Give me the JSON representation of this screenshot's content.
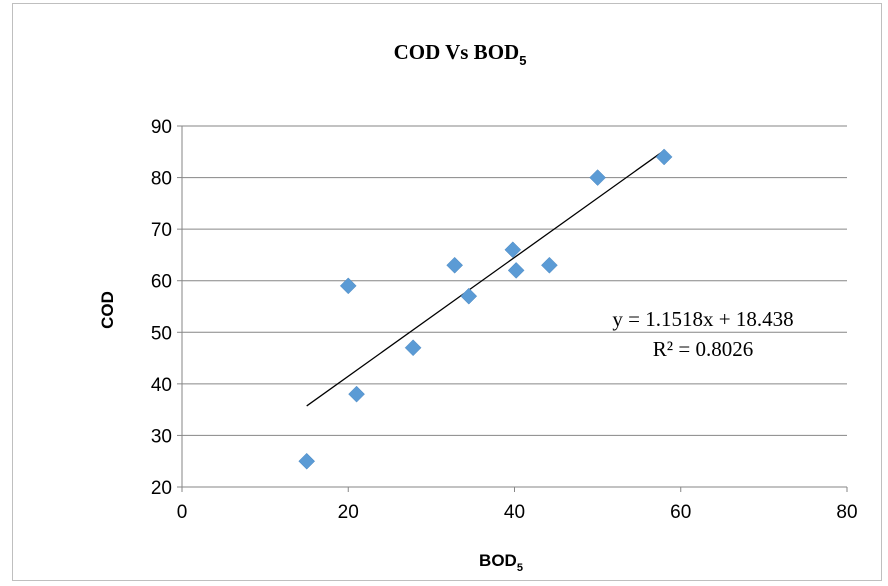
{
  "chart_data": {
    "type": "scatter",
    "title": {
      "main": "COD Vs BOD",
      "subscript": "5"
    },
    "xlabel": {
      "main": "BOD",
      "subscript": "5"
    },
    "ylabel": "COD",
    "xlim": [
      0,
      80
    ],
    "ylim": [
      20,
      90
    ],
    "x_ticks": [
      0,
      20,
      40,
      60,
      80
    ],
    "y_ticks": [
      20,
      30,
      40,
      50,
      60,
      70,
      80,
      90
    ],
    "grid": "horizontal",
    "legend": "none",
    "series": [
      {
        "marker": "diamond",
        "color": "#5b9bd5",
        "points": [
          [
            15,
            25
          ],
          [
            20,
            59
          ],
          [
            21,
            38
          ],
          [
            27.8,
            47
          ],
          [
            32.8,
            63
          ],
          [
            34.5,
            57
          ],
          [
            39.8,
            66
          ],
          [
            40.2,
            62
          ],
          [
            44.2,
            63
          ],
          [
            50,
            80
          ],
          [
            58,
            84
          ]
        ]
      }
    ],
    "trendline": {
      "type": "linear",
      "slope": 1.1518,
      "intercept": 18.438,
      "x_range": [
        15,
        58
      ],
      "color": "#000000",
      "equation_label": "y = 1.1518x + 18.438",
      "r2_label": "R² = 0.8026"
    }
  }
}
